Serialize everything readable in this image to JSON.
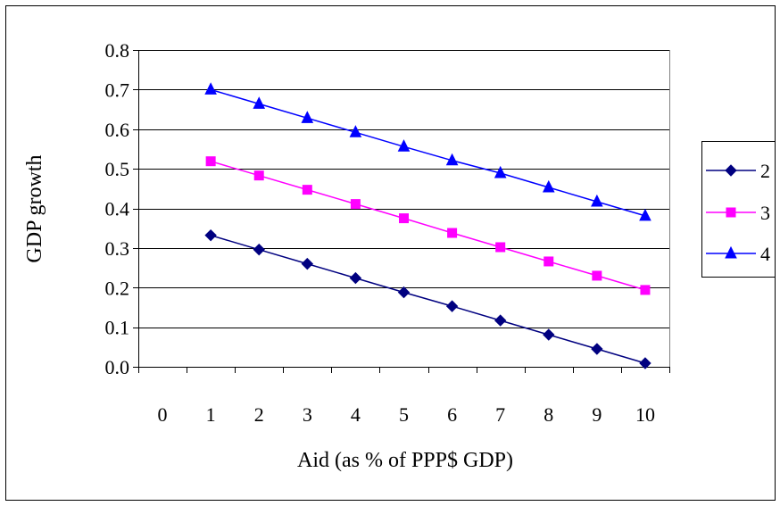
{
  "chart_data": {
    "type": "line",
    "title": "",
    "xlabel": "Aid (as % of PPP$ GDP)",
    "ylabel": "GDP growth",
    "x_ticks": [
      "0",
      "1",
      "2",
      "3",
      "4",
      "5",
      "6",
      "7",
      "8",
      "9",
      "10"
    ],
    "y_ticks": [
      "0.0",
      "0.1",
      "0.2",
      "0.3",
      "0.4",
      "0.5",
      "0.6",
      "0.7",
      "0.8"
    ],
    "xlim": [
      0,
      10
    ],
    "ylim": [
      0,
      0.8
    ],
    "grid": "horizontal",
    "legend_position": "right",
    "x": [
      1,
      2,
      3,
      4,
      5,
      6,
      7,
      8,
      9,
      10
    ],
    "series": [
      {
        "name": "2",
        "color": "#000080",
        "marker": "diamond",
        "values": [
          0.332,
          0.296,
          0.26,
          0.224,
          0.188,
          0.153,
          0.117,
          0.081,
          0.045,
          0.009
        ]
      },
      {
        "name": "3",
        "color": "#ff00ff",
        "marker": "square",
        "values": [
          0.519,
          0.483,
          0.447,
          0.411,
          0.375,
          0.338,
          0.302,
          0.266,
          0.23,
          0.194
        ]
      },
      {
        "name": "4",
        "color": "#0000ff",
        "marker": "triangle",
        "values": [
          0.7,
          0.664,
          0.628,
          0.592,
          0.556,
          0.521,
          0.489,
          0.453,
          0.417,
          0.381
        ]
      }
    ]
  }
}
